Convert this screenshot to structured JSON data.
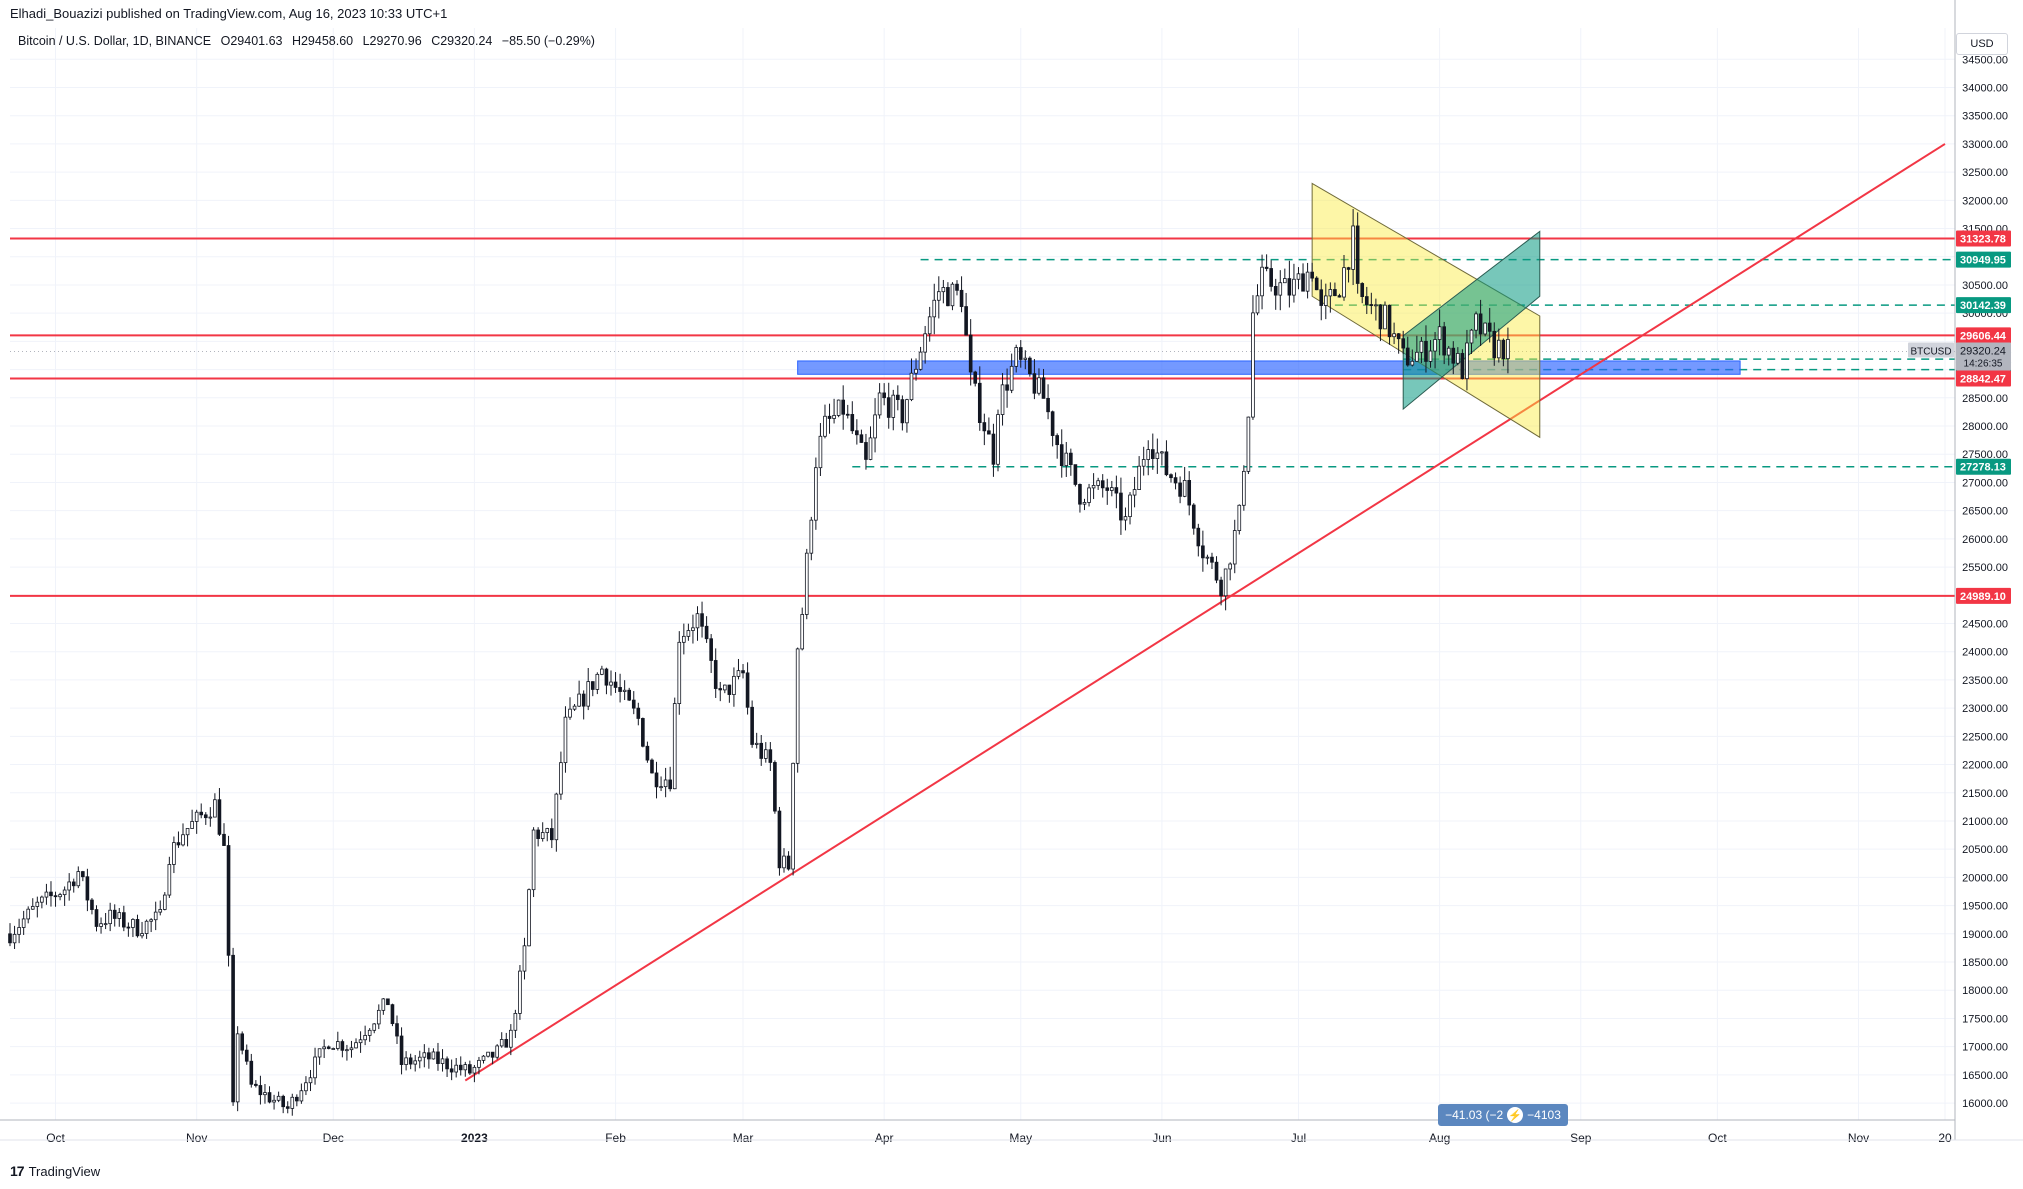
{
  "header": {
    "published": "Elhadi_Bouazizi published on TradingView.com, Aug 16, 2023 10:33 UTC+1",
    "symbol": "Bitcoin / U.S. Dollar, 1D, BINANCE",
    "open": "O29401.63",
    "high": "H29458.60",
    "low": "L29270.96",
    "close": "C29320.24",
    "change": "−85.50 (−0.29%)"
  },
  "currency_button": "USD",
  "footer": {
    "logo": "17",
    "brand": "TradingView"
  },
  "measure_pill": {
    "left": "−41.03 (−2",
    "right": "−4103"
  },
  "colors": {
    "candle": "#131722",
    "red_line": "#f23645",
    "teal": "#089981",
    "blue_zone": "#2962ff",
    "yellow": "#fbeb3c",
    "grid": "#f0f3fa"
  },
  "chart_data": {
    "type": "candlestick",
    "title": "Bitcoin / U.S. Dollar, 1D, BINANCE",
    "ylim": [
      15700,
      34700
    ],
    "y_ticks": [
      16000,
      16500,
      17000,
      17500,
      18000,
      18500,
      19000,
      19500,
      20000,
      20500,
      21000,
      21500,
      22000,
      22500,
      23000,
      23500,
      24000,
      24500,
      25000,
      25500,
      26000,
      26500,
      27000,
      27500,
      28000,
      28500,
      29000,
      29500,
      30000,
      30500,
      31000,
      31500,
      32000,
      32500,
      33000,
      33500,
      34000,
      34500
    ],
    "x_ticks": [
      {
        "label": "Oct",
        "date": "2022-10-01"
      },
      {
        "label": "Nov",
        "date": "2022-11-01"
      },
      {
        "label": "Dec",
        "date": "2022-12-01"
      },
      {
        "label": "2023",
        "date": "2023-01-01"
      },
      {
        "label": "Feb",
        "date": "2023-02-01"
      },
      {
        "label": "Mar",
        "date": "2023-03-01"
      },
      {
        "label": "Apr",
        "date": "2023-04-01"
      },
      {
        "label": "May",
        "date": "2023-05-01"
      },
      {
        "label": "Jun",
        "date": "2023-06-01"
      },
      {
        "label": "Jul",
        "date": "2023-07-01"
      },
      {
        "label": "Aug",
        "date": "2023-08-01"
      },
      {
        "label": "Sep",
        "date": "2023-09-01"
      },
      {
        "label": "Oct",
        "date": "2023-10-01"
      },
      {
        "label": "Nov",
        "date": "2023-11-01"
      },
      {
        "label": "20",
        "date": "2023-11-20"
      }
    ],
    "price_anchors": [
      [
        "2022-09-21",
        19000
      ],
      [
        "2022-09-27",
        19500
      ],
      [
        "2022-10-03",
        19800
      ],
      [
        "2022-10-06",
        20100
      ],
      [
        "2022-10-10",
        19200
      ],
      [
        "2022-10-13",
        19300
      ],
      [
        "2022-10-19",
        19100
      ],
      [
        "2022-10-24",
        19300
      ],
      [
        "2022-10-26",
        20400
      ],
      [
        "2022-10-29",
        20800
      ],
      [
        "2022-11-05",
        21300
      ],
      [
        "2022-11-07",
        20500
      ],
      [
        "2022-11-08",
        18500
      ],
      [
        "2022-11-09",
        15900
      ],
      [
        "2022-11-10",
        17300
      ],
      [
        "2022-11-13",
        16300
      ],
      [
        "2022-11-21",
        15900
      ],
      [
        "2022-11-30",
        17100
      ],
      [
        "2022-12-05",
        17000
      ],
      [
        "2022-12-13",
        17800
      ],
      [
        "2022-12-16",
        16700
      ],
      [
        "2022-12-22",
        16800
      ],
      [
        "2022-12-31",
        16550
      ],
      [
        "2023-01-06",
        16900
      ],
      [
        "2023-01-09",
        17200
      ],
      [
        "2023-01-12",
        18700
      ],
      [
        "2023-01-14",
        20800
      ],
      [
        "2023-01-18",
        20700
      ],
      [
        "2023-01-21",
        22700
      ],
      [
        "2023-01-29",
        23700
      ],
      [
        "2023-02-06",
        22800
      ],
      [
        "2023-02-09",
        21800
      ],
      [
        "2023-02-13",
        21750
      ],
      [
        "2023-02-15",
        24300
      ],
      [
        "2023-02-19",
        24600
      ],
      [
        "2023-02-24",
        23200
      ],
      [
        "2023-03-01",
        23600
      ],
      [
        "2023-03-03",
        22400
      ],
      [
        "2023-03-07",
        22000
      ],
      [
        "2023-03-09",
        20300
      ],
      [
        "2023-03-11",
        20200
      ],
      [
        "2023-03-13",
        24100
      ],
      [
        "2023-03-14",
        24700
      ],
      [
        "2023-03-17",
        27400
      ],
      [
        "2023-03-19",
        28000
      ],
      [
        "2023-03-23",
        28300
      ],
      [
        "2023-03-28",
        27300
      ],
      [
        "2023-03-31",
        28500
      ],
      [
        "2023-04-05",
        28200
      ],
      [
        "2023-04-10",
        29700
      ],
      [
        "2023-04-13",
        30400
      ],
      [
        "2023-04-18",
        30300
      ],
      [
        "2023-04-20",
        28800
      ],
      [
        "2023-04-25",
        27500
      ],
      [
        "2023-04-26",
        28400
      ],
      [
        "2023-04-30",
        29200
      ],
      [
        "2023-05-06",
        28500
      ],
      [
        "2023-05-09",
        27700
      ],
      [
        "2023-05-14",
        26800
      ],
      [
        "2023-05-20",
        26900
      ],
      [
        "2023-05-24",
        26300
      ],
      [
        "2023-05-29",
        27800
      ],
      [
        "2023-06-02",
        27200
      ],
      [
        "2023-06-06",
        26900
      ],
      [
        "2023-06-10",
        25800
      ],
      [
        "2023-06-14",
        25200
      ],
      [
        "2023-06-15",
        25400
      ],
      [
        "2023-06-18",
        26400
      ],
      [
        "2023-06-20",
        28300
      ],
      [
        "2023-06-21",
        30000
      ],
      [
        "2023-06-23",
        30600
      ],
      [
        "2023-06-29",
        30400
      ],
      [
        "2023-07-04",
        30800
      ],
      [
        "2023-07-06",
        30000
      ],
      [
        "2023-07-10",
        30500
      ],
      [
        "2023-07-13",
        31300
      ],
      [
        "2023-07-14",
        30300
      ],
      [
        "2023-07-20",
        29900
      ],
      [
        "2023-07-24",
        29200
      ],
      [
        "2023-07-28",
        29300
      ],
      [
        "2023-08-01",
        29600
      ],
      [
        "2023-08-06",
        29000
      ],
      [
        "2023-08-09",
        29800
      ],
      [
        "2023-08-13",
        29400
      ],
      [
        "2023-08-15",
        29400
      ],
      [
        "2023-08-16",
        29320
      ]
    ],
    "horizontal_levels": [
      {
        "value": 31323.78,
        "label": "31323.78",
        "color": "red",
        "style": "solid"
      },
      {
        "value": 30949.95,
        "label": "30949.95",
        "color": "teal",
        "style": "dashed"
      },
      {
        "value": 30142.39,
        "label": "30142.39",
        "color": "teal",
        "style": "dashed"
      },
      {
        "value": 29606.44,
        "label": "29606.44",
        "color": "red",
        "style": "solid"
      },
      {
        "value": 29185.38,
        "label": "29185.38",
        "color": "teal",
        "style": "dashed"
      },
      {
        "value": 28998.77,
        "label": "28998.77",
        "color": "teal",
        "style": "dashed"
      },
      {
        "value": 28842.47,
        "label": "28842.47",
        "color": "red",
        "style": "solid"
      },
      {
        "value": 27278.13,
        "label": "27278.13",
        "color": "teal",
        "style": "dashed"
      },
      {
        "value": 24989.1,
        "label": "24989.10",
        "color": "red",
        "style": "solid"
      }
    ],
    "current_price": {
      "symbol": "BTCUSD",
      "value": "29320.24",
      "countdown": "14:26:35"
    },
    "trendline": {
      "start": {
        "date": "2022-12-30",
        "value": 16400
      },
      "end": {
        "date": "2023-11-20",
        "value": 33000
      }
    },
    "blue_zone": {
      "start": "2023-03-13",
      "end": "2023-10-06",
      "top": 29100,
      "bottom": 28970
    },
    "yellow_channel": {
      "upper": [
        {
          "date": "2023-07-04",
          "value": 32300
        },
        {
          "date": "2023-08-23",
          "value": 29950
        }
      ],
      "lower": [
        {
          "date": "2023-07-04",
          "value": 30300
        },
        {
          "date": "2023-08-23",
          "value": 27800
        }
      ]
    },
    "teal_channel": {
      "lower": [
        {
          "date": "2023-07-24",
          "value": 28300
        },
        {
          "date": "2023-08-23",
          "value": 30300
        }
      ],
      "upper": [
        {
          "date": "2023-07-24",
          "value": 29600
        },
        {
          "date": "2023-08-23",
          "value": 31450
        }
      ]
    }
  }
}
